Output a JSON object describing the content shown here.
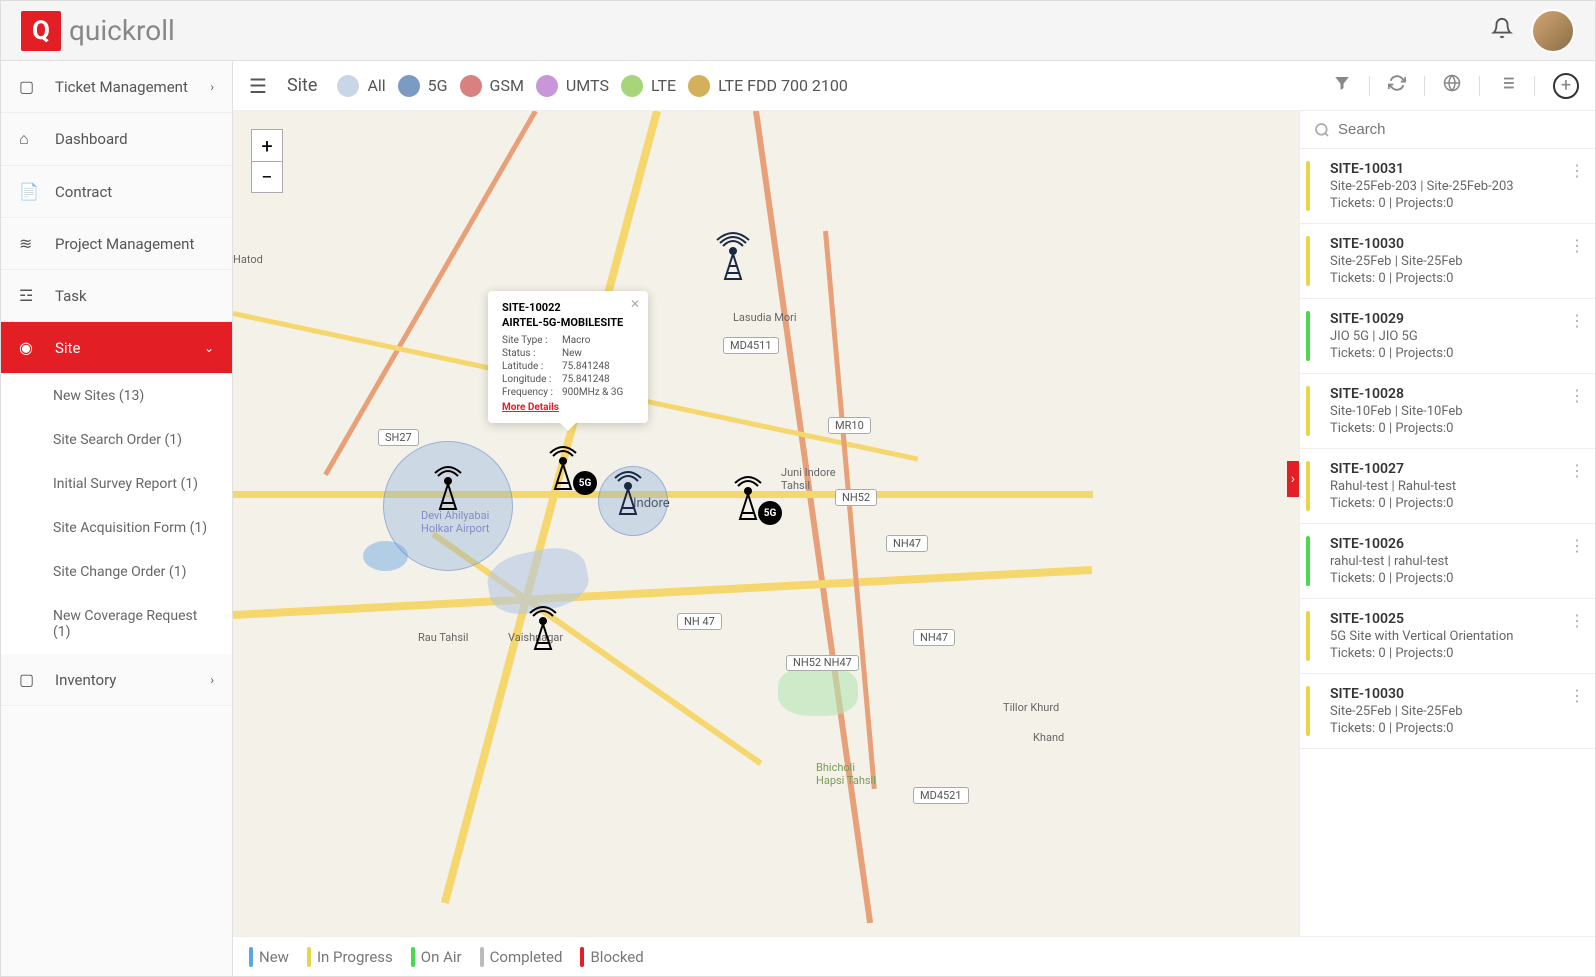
{
  "brand": "quickroll",
  "sidebar": {
    "items": [
      {
        "icon": "▢",
        "label": "Ticket Management",
        "expandable": true
      },
      {
        "icon": "⌂",
        "label": "Dashboard"
      },
      {
        "icon": "📄",
        "label": "Contract"
      },
      {
        "icon": "≋",
        "label": "Project Management"
      },
      {
        "icon": "☲",
        "label": "Task"
      },
      {
        "icon": "◉",
        "label": "Site",
        "active": true,
        "expanded": true
      },
      {
        "icon": "▢",
        "label": "Inventory",
        "expandable": true
      }
    ],
    "site_sub": [
      "New Sites (13)",
      "Site Search Order (1)",
      "Initial Survey Report (1)",
      "Site Acquisition Form (1)",
      "Site Change Order (1)",
      "New Coverage Request (1)"
    ]
  },
  "topbar": {
    "label": "Site",
    "filters": [
      {
        "color": "#c9d6e8",
        "label": "All"
      },
      {
        "color": "#7b9bc4",
        "label": "5G"
      },
      {
        "color": "#d98080",
        "label": "GSM"
      },
      {
        "color": "#c896d9",
        "label": "UMTS"
      },
      {
        "color": "#a8d47a",
        "label": "LTE"
      },
      {
        "color": "#d4b05a",
        "label": "LTE FDD 700 2100"
      }
    ]
  },
  "map": {
    "zoom_in": "+",
    "zoom_out": "−",
    "labels": {
      "lasudia": "Lasudia Mori",
      "indore": "Indore",
      "hatod": "Hatod",
      "juni": "Juni Indore Tahsil",
      "vaish": "Vaishnagar",
      "rau": "Rau Tahsil",
      "tillor": "Tillor Khurd",
      "hapsi": "Bhicholi Hapsi Tahsil",
      "khand": "Khand",
      "airport": "Devi Ahilyabai Holkar Airport"
    },
    "badges": {
      "md4511": "MD4511",
      "mr10": "MR10",
      "nh52": "NH52",
      "nh47_1": "NH47",
      "nh47_2": "NH 47",
      "nh47_3": "NH47",
      "nh52_nh47": "NH52 NH47",
      "sh27": "SH27",
      "md4521": "MD4521"
    }
  },
  "popup": {
    "title": "SITE-10022",
    "subtitle": "AIRTEL-5G-MOBILESITE",
    "rows": [
      {
        "k": "Site Type :",
        "v": "Macro"
      },
      {
        "k": "Status :",
        "v": "New"
      },
      {
        "k": "Latitude :",
        "v": "75.841248"
      },
      {
        "k": "Longitude :",
        "v": "75.841248"
      },
      {
        "k": "Frequency :",
        "v": "900MHz & 3G"
      }
    ],
    "link": "More Details"
  },
  "search_placeholder": "Search",
  "sites": [
    {
      "id": "SITE-10031",
      "desc": "Site-25Feb-203 | Site-25Feb-203",
      "meta": "Tickets: 0 | Projects:0",
      "color": "#e8d548"
    },
    {
      "id": "SITE-10030",
      "desc": "Site-25Feb | Site-25Feb",
      "meta": "Tickets: 0 | Projects:0",
      "color": "#e8d548"
    },
    {
      "id": "SITE-10029",
      "desc": "JIO 5G | JIO 5G",
      "meta": "Tickets: 0 | Projects:0",
      "color": "#4ad94a"
    },
    {
      "id": "SITE-10028",
      "desc": "Site-10Feb | Site-10Feb",
      "meta": "Tickets: 0 | Projects:0",
      "color": "#e8d548"
    },
    {
      "id": "SITE-10027",
      "desc": "Rahul-test | Rahul-test",
      "meta": "Tickets: 0 | Projects:0",
      "color": "#e8d548"
    },
    {
      "id": "SITE-10026",
      "desc": "rahul-test | rahul-test",
      "meta": "Tickets: 0 | Projects:0",
      "color": "#4ad94a"
    },
    {
      "id": "SITE-10025",
      "desc": "5G Site with Vertical Orientation",
      "meta": "Tickets: 0 | Projects:0",
      "color": "#e8d548"
    },
    {
      "id": "SITE-10030",
      "desc": "Site-25Feb | Site-25Feb",
      "meta": "Tickets: 0 | Projects:0",
      "color": "#e8d548"
    }
  ],
  "legend": [
    {
      "color": "#5aa8e0",
      "label": "New"
    },
    {
      "color": "#e8d548",
      "label": "In Progress"
    },
    {
      "color": "#4ad94a",
      "label": "On Air"
    },
    {
      "color": "#bbb",
      "label": "Completed"
    },
    {
      "color": "#e31e24",
      "label": "Blocked"
    }
  ]
}
